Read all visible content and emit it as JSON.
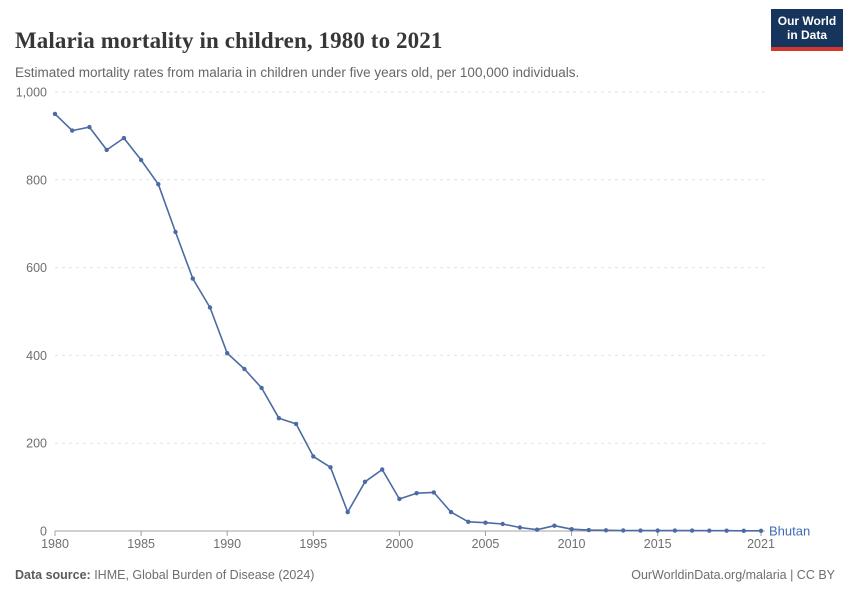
{
  "header": {
    "title": "Malaria mortality in children, 1980 to 2021",
    "subtitle": "Estimated mortality rates from malaria in children under five years old, per 100,000 individuals."
  },
  "logo": {
    "line1": "Our World",
    "line2": "in Data"
  },
  "colors": {
    "line": "#4c6ba3",
    "entity_label": "#3d6cb4",
    "logo_bg": "#16355c",
    "logo_bar": "#d4382d",
    "gridline": "#e2e2e2",
    "axis_line": "#a0a0a0",
    "tick_text": "#6f6f6f"
  },
  "chart_data": {
    "type": "line",
    "title": "Malaria mortality in children, 1980 to 2021",
    "subtitle": "Estimated mortality rates from malaria in children under five years old, per 100,000 individuals.",
    "xlabel": "",
    "ylabel": "",
    "ylim": [
      0,
      1000
    ],
    "yticks": [
      0,
      200,
      400,
      600,
      800,
      1000
    ],
    "ytick_labels": [
      "0",
      "200",
      "400",
      "600",
      "800",
      "1,000"
    ],
    "xticks": [
      1980,
      1985,
      1990,
      1995,
      2000,
      2005,
      2010,
      2015,
      2021
    ],
    "xtick_labels": [
      "1980",
      "1985",
      "1990",
      "1995",
      "2000",
      "2005",
      "2010",
      "2015",
      "2021"
    ],
    "grid": "horizontal-dashed",
    "legend_position": "line-end-label",
    "series": [
      {
        "name": "Bhutan",
        "color": "#4c6ba3",
        "x": [
          1980,
          1981,
          1982,
          1983,
          1984,
          1985,
          1986,
          1987,
          1988,
          1989,
          1990,
          1991,
          1992,
          1993,
          1994,
          1995,
          1996,
          1997,
          1998,
          1999,
          2000,
          2001,
          2002,
          2003,
          2004,
          2005,
          2006,
          2007,
          2008,
          2009,
          2010,
          2011,
          2012,
          2013,
          2014,
          2015,
          2016,
          2017,
          2018,
          2019,
          2020,
          2021
        ],
        "values": [
          950,
          912,
          920,
          868,
          895,
          845,
          790,
          681,
          575,
          509,
          405,
          369,
          326,
          257,
          244,
          170,
          145,
          43,
          112,
          140,
          73,
          86,
          88,
          43,
          21,
          19,
          16,
          8,
          3,
          12,
          4,
          2,
          1.5,
          1.2,
          1,
          1,
          0.9,
          0.8,
          0.7,
          0.6,
          0.5,
          0.5
        ]
      }
    ]
  },
  "footer": {
    "source_label": "Data source:",
    "source_text": " IHME, Global Burden of Disease (2024)",
    "right_text": "OurWorldinData.org/malaria | CC BY"
  }
}
